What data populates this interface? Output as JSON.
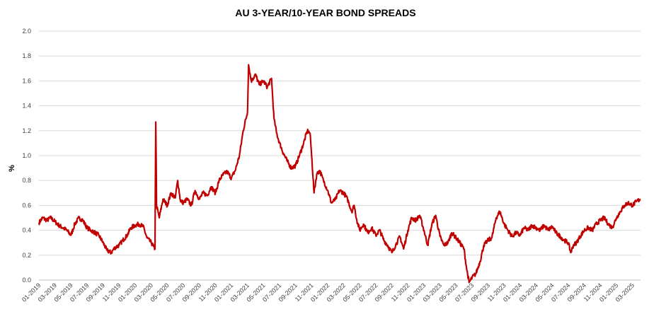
{
  "chart_data": {
    "type": "line",
    "title": "AU 3-YEAR/10-YEAR BOND SPREADS",
    "xlabel": "",
    "ylabel": "%",
    "ylim": [
      0.0,
      2.0
    ],
    "yticks": [
      "0.0",
      "0.2",
      "0.4",
      "0.6",
      "0.8",
      "1.0",
      "1.2",
      "1.4",
      "1.6",
      "1.8",
      "2.0"
    ],
    "xlim": [
      "2019-01",
      "2025-04"
    ],
    "xticks": [
      "01-2019",
      "03-2019",
      "05-2019",
      "07-2019",
      "09-2019",
      "11-2019",
      "01-2020",
      "03-2020",
      "05-2020",
      "07-2020",
      "09-2020",
      "11-2020",
      "01-2021",
      "03-2021",
      "05-2021",
      "07-2021",
      "09-2021",
      "11-2021",
      "01-2022",
      "03-2022",
      "05-2022",
      "07-2022",
      "09-2022",
      "11-2022",
      "01-2023",
      "03-2023",
      "05-2023",
      "07-2023",
      "09-2023",
      "11-2023",
      "01-2024",
      "03-2024",
      "05-2024",
      "07-2024",
      "09-2024",
      "11-2024",
      "01-2025",
      "03-2025"
    ],
    "grid": true,
    "legend": "none",
    "color": "#c00000",
    "series": [
      {
        "points": [
          [
            "2019-01-01",
            0.46
          ],
          [
            "2019-01-15",
            0.5
          ],
          [
            "2019-02-01",
            0.48
          ],
          [
            "2019-02-15",
            0.5
          ],
          [
            "2019-03-01",
            0.47
          ],
          [
            "2019-03-15",
            0.44
          ],
          [
            "2019-04-01",
            0.42
          ],
          [
            "2019-04-15",
            0.4
          ],
          [
            "2019-05-01",
            0.36
          ],
          [
            "2019-05-15",
            0.45
          ],
          [
            "2019-06-01",
            0.5
          ],
          [
            "2019-06-15",
            0.48
          ],
          [
            "2019-07-01",
            0.42
          ],
          [
            "2019-07-15",
            0.4
          ],
          [
            "2019-08-01",
            0.38
          ],
          [
            "2019-08-15",
            0.36
          ],
          [
            "2019-09-01",
            0.3
          ],
          [
            "2019-09-15",
            0.24
          ],
          [
            "2019-10-01",
            0.22
          ],
          [
            "2019-10-15",
            0.26
          ],
          [
            "2019-11-01",
            0.28
          ],
          [
            "2019-11-15",
            0.32
          ],
          [
            "2019-12-01",
            0.36
          ],
          [
            "2019-12-15",
            0.42
          ],
          [
            "2020-01-01",
            0.44
          ],
          [
            "2020-01-15",
            0.45
          ],
          [
            "2020-02-01",
            0.43
          ],
          [
            "2020-02-15",
            0.34
          ],
          [
            "2020-03-01",
            0.3
          ],
          [
            "2020-03-10",
            0.27
          ],
          [
            "2020-03-15",
            0.25
          ],
          [
            "2020-03-18",
            1.27
          ],
          [
            "2020-03-21",
            0.6
          ],
          [
            "2020-04-01",
            0.5
          ],
          [
            "2020-04-15",
            0.65
          ],
          [
            "2020-05-01",
            0.6
          ],
          [
            "2020-05-15",
            0.7
          ],
          [
            "2020-06-01",
            0.66
          ],
          [
            "2020-06-10",
            0.8
          ],
          [
            "2020-06-20",
            0.64
          ],
          [
            "2020-07-01",
            0.62
          ],
          [
            "2020-07-15",
            0.65
          ],
          [
            "2020-08-01",
            0.6
          ],
          [
            "2020-08-15",
            0.72
          ],
          [
            "2020-09-01",
            0.65
          ],
          [
            "2020-09-15",
            0.7
          ],
          [
            "2020-10-01",
            0.68
          ],
          [
            "2020-10-15",
            0.75
          ],
          [
            "2020-11-01",
            0.7
          ],
          [
            "2020-11-15",
            0.8
          ],
          [
            "2020-12-01",
            0.85
          ],
          [
            "2020-12-15",
            0.87
          ],
          [
            "2021-01-01",
            0.82
          ],
          [
            "2021-01-15",
            0.88
          ],
          [
            "2021-02-01",
            1.0
          ],
          [
            "2021-02-15",
            1.2
          ],
          [
            "2021-03-01",
            1.35
          ],
          [
            "2021-03-05",
            1.73
          ],
          [
            "2021-03-15",
            1.6
          ],
          [
            "2021-04-01",
            1.65
          ],
          [
            "2021-04-15",
            1.57
          ],
          [
            "2021-05-01",
            1.6
          ],
          [
            "2021-05-15",
            1.55
          ],
          [
            "2021-06-01",
            1.62
          ],
          [
            "2021-06-10",
            1.3
          ],
          [
            "2021-06-20",
            1.18
          ],
          [
            "2021-07-01",
            1.1
          ],
          [
            "2021-07-15",
            1.02
          ],
          [
            "2021-08-01",
            0.95
          ],
          [
            "2021-08-15",
            0.9
          ],
          [
            "2021-09-01",
            0.92
          ],
          [
            "2021-09-15",
            1.0
          ],
          [
            "2021-10-01",
            1.1
          ],
          [
            "2021-10-15",
            1.2
          ],
          [
            "2021-10-25",
            1.18
          ],
          [
            "2021-11-01",
            1.0
          ],
          [
            "2021-11-10",
            0.7
          ],
          [
            "2021-11-20",
            0.85
          ],
          [
            "2021-12-01",
            0.88
          ],
          [
            "2021-12-15",
            0.8
          ],
          [
            "2022-01-01",
            0.72
          ],
          [
            "2022-01-15",
            0.62
          ],
          [
            "2022-02-01",
            0.65
          ],
          [
            "2022-02-15",
            0.72
          ],
          [
            "2022-03-01",
            0.7
          ],
          [
            "2022-03-15",
            0.65
          ],
          [
            "2022-04-01",
            0.55
          ],
          [
            "2022-04-10",
            0.6
          ],
          [
            "2022-04-20",
            0.48
          ],
          [
            "2022-05-01",
            0.4
          ],
          [
            "2022-05-15",
            0.45
          ],
          [
            "2022-06-01",
            0.38
          ],
          [
            "2022-06-15",
            0.42
          ],
          [
            "2022-07-01",
            0.36
          ],
          [
            "2022-07-15",
            0.4
          ],
          [
            "2022-08-01",
            0.32
          ],
          [
            "2022-08-15",
            0.28
          ],
          [
            "2022-09-01",
            0.22
          ],
          [
            "2022-09-15",
            0.28
          ],
          [
            "2022-10-01",
            0.35
          ],
          [
            "2022-10-15",
            0.25
          ],
          [
            "2022-11-01",
            0.4
          ],
          [
            "2022-11-15",
            0.5
          ],
          [
            "2022-12-01",
            0.48
          ],
          [
            "2022-12-15",
            0.52
          ],
          [
            "2023-01-01",
            0.4
          ],
          [
            "2023-01-15",
            0.28
          ],
          [
            "2023-02-01",
            0.45
          ],
          [
            "2023-02-15",
            0.52
          ],
          [
            "2023-03-01",
            0.35
          ],
          [
            "2023-03-15",
            0.28
          ],
          [
            "2023-04-01",
            0.3
          ],
          [
            "2023-04-15",
            0.38
          ],
          [
            "2023-05-01",
            0.34
          ],
          [
            "2023-05-15",
            0.3
          ],
          [
            "2023-06-01",
            0.25
          ],
          [
            "2023-06-10",
            0.1
          ],
          [
            "2023-06-20",
            -0.02
          ],
          [
            "2023-07-01",
            0.02
          ],
          [
            "2023-07-15",
            0.05
          ],
          [
            "2023-08-01",
            0.15
          ],
          [
            "2023-08-15",
            0.28
          ],
          [
            "2023-09-01",
            0.32
          ],
          [
            "2023-09-15",
            0.34
          ],
          [
            "2023-10-01",
            0.5
          ],
          [
            "2023-10-15",
            0.55
          ],
          [
            "2023-11-01",
            0.45
          ],
          [
            "2023-11-15",
            0.4
          ],
          [
            "2023-12-01",
            0.35
          ],
          [
            "2023-12-15",
            0.38
          ],
          [
            "2024-01-01",
            0.36
          ],
          [
            "2024-01-15",
            0.42
          ],
          [
            "2024-02-01",
            0.4
          ],
          [
            "2024-02-15",
            0.44
          ],
          [
            "2024-03-01",
            0.42
          ],
          [
            "2024-03-15",
            0.4
          ],
          [
            "2024-04-01",
            0.44
          ],
          [
            "2024-04-15",
            0.4
          ],
          [
            "2024-05-01",
            0.43
          ],
          [
            "2024-05-15",
            0.38
          ],
          [
            "2024-06-01",
            0.35
          ],
          [
            "2024-06-15",
            0.32
          ],
          [
            "2024-07-01",
            0.3
          ],
          [
            "2024-07-10",
            0.22
          ],
          [
            "2024-07-20",
            0.28
          ],
          [
            "2024-08-01",
            0.3
          ],
          [
            "2024-08-15",
            0.35
          ],
          [
            "2024-09-01",
            0.4
          ],
          [
            "2024-09-15",
            0.42
          ],
          [
            "2024-10-01",
            0.4
          ],
          [
            "2024-10-15",
            0.45
          ],
          [
            "2024-11-01",
            0.48
          ],
          [
            "2024-11-15",
            0.5
          ],
          [
            "2024-12-01",
            0.45
          ],
          [
            "2024-12-15",
            0.42
          ],
          [
            "2025-01-01",
            0.5
          ],
          [
            "2025-01-15",
            0.55
          ],
          [
            "2025-02-01",
            0.6
          ],
          [
            "2025-02-15",
            0.62
          ],
          [
            "2025-03-01",
            0.6
          ],
          [
            "2025-03-15",
            0.63
          ],
          [
            "2025-04-01",
            0.65
          ]
        ]
      }
    ]
  }
}
